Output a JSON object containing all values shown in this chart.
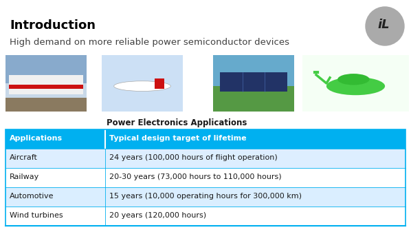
{
  "title": "Introduction",
  "subtitle": "High demand on more reliable power semiconductor devices",
  "caption": "Power Electronics Applications",
  "background_color": "#ffffff",
  "title_color": "#000000",
  "subtitle_color": "#404040",
  "header_bg_color": "#00b0f0",
  "header_text_color": "#ffffff",
  "row_colors": [
    "#ddeeff",
    "#ffffff",
    "#daeeff",
    "#ffffff"
  ],
  "table_border_color": "#00b0f0",
  "table_headers": [
    "Applications",
    "Typical design target of lifetime"
  ],
  "table_rows": [
    [
      "Aircraft",
      "24 years (100,000 hours of flight operation)"
    ],
    [
      "Railway",
      "20-30 years (73,000 hours to 110,000 hours)"
    ],
    [
      "Automotive",
      "15 years (10,000 operating hours for 300,000 km)"
    ],
    [
      "Wind turbines",
      "20 years (120,000 hours)"
    ]
  ],
  "logo_bg_color": "#aaaaaa",
  "logo_text": "iL",
  "figw": 5.98,
  "figh": 3.37,
  "dpi": 100
}
